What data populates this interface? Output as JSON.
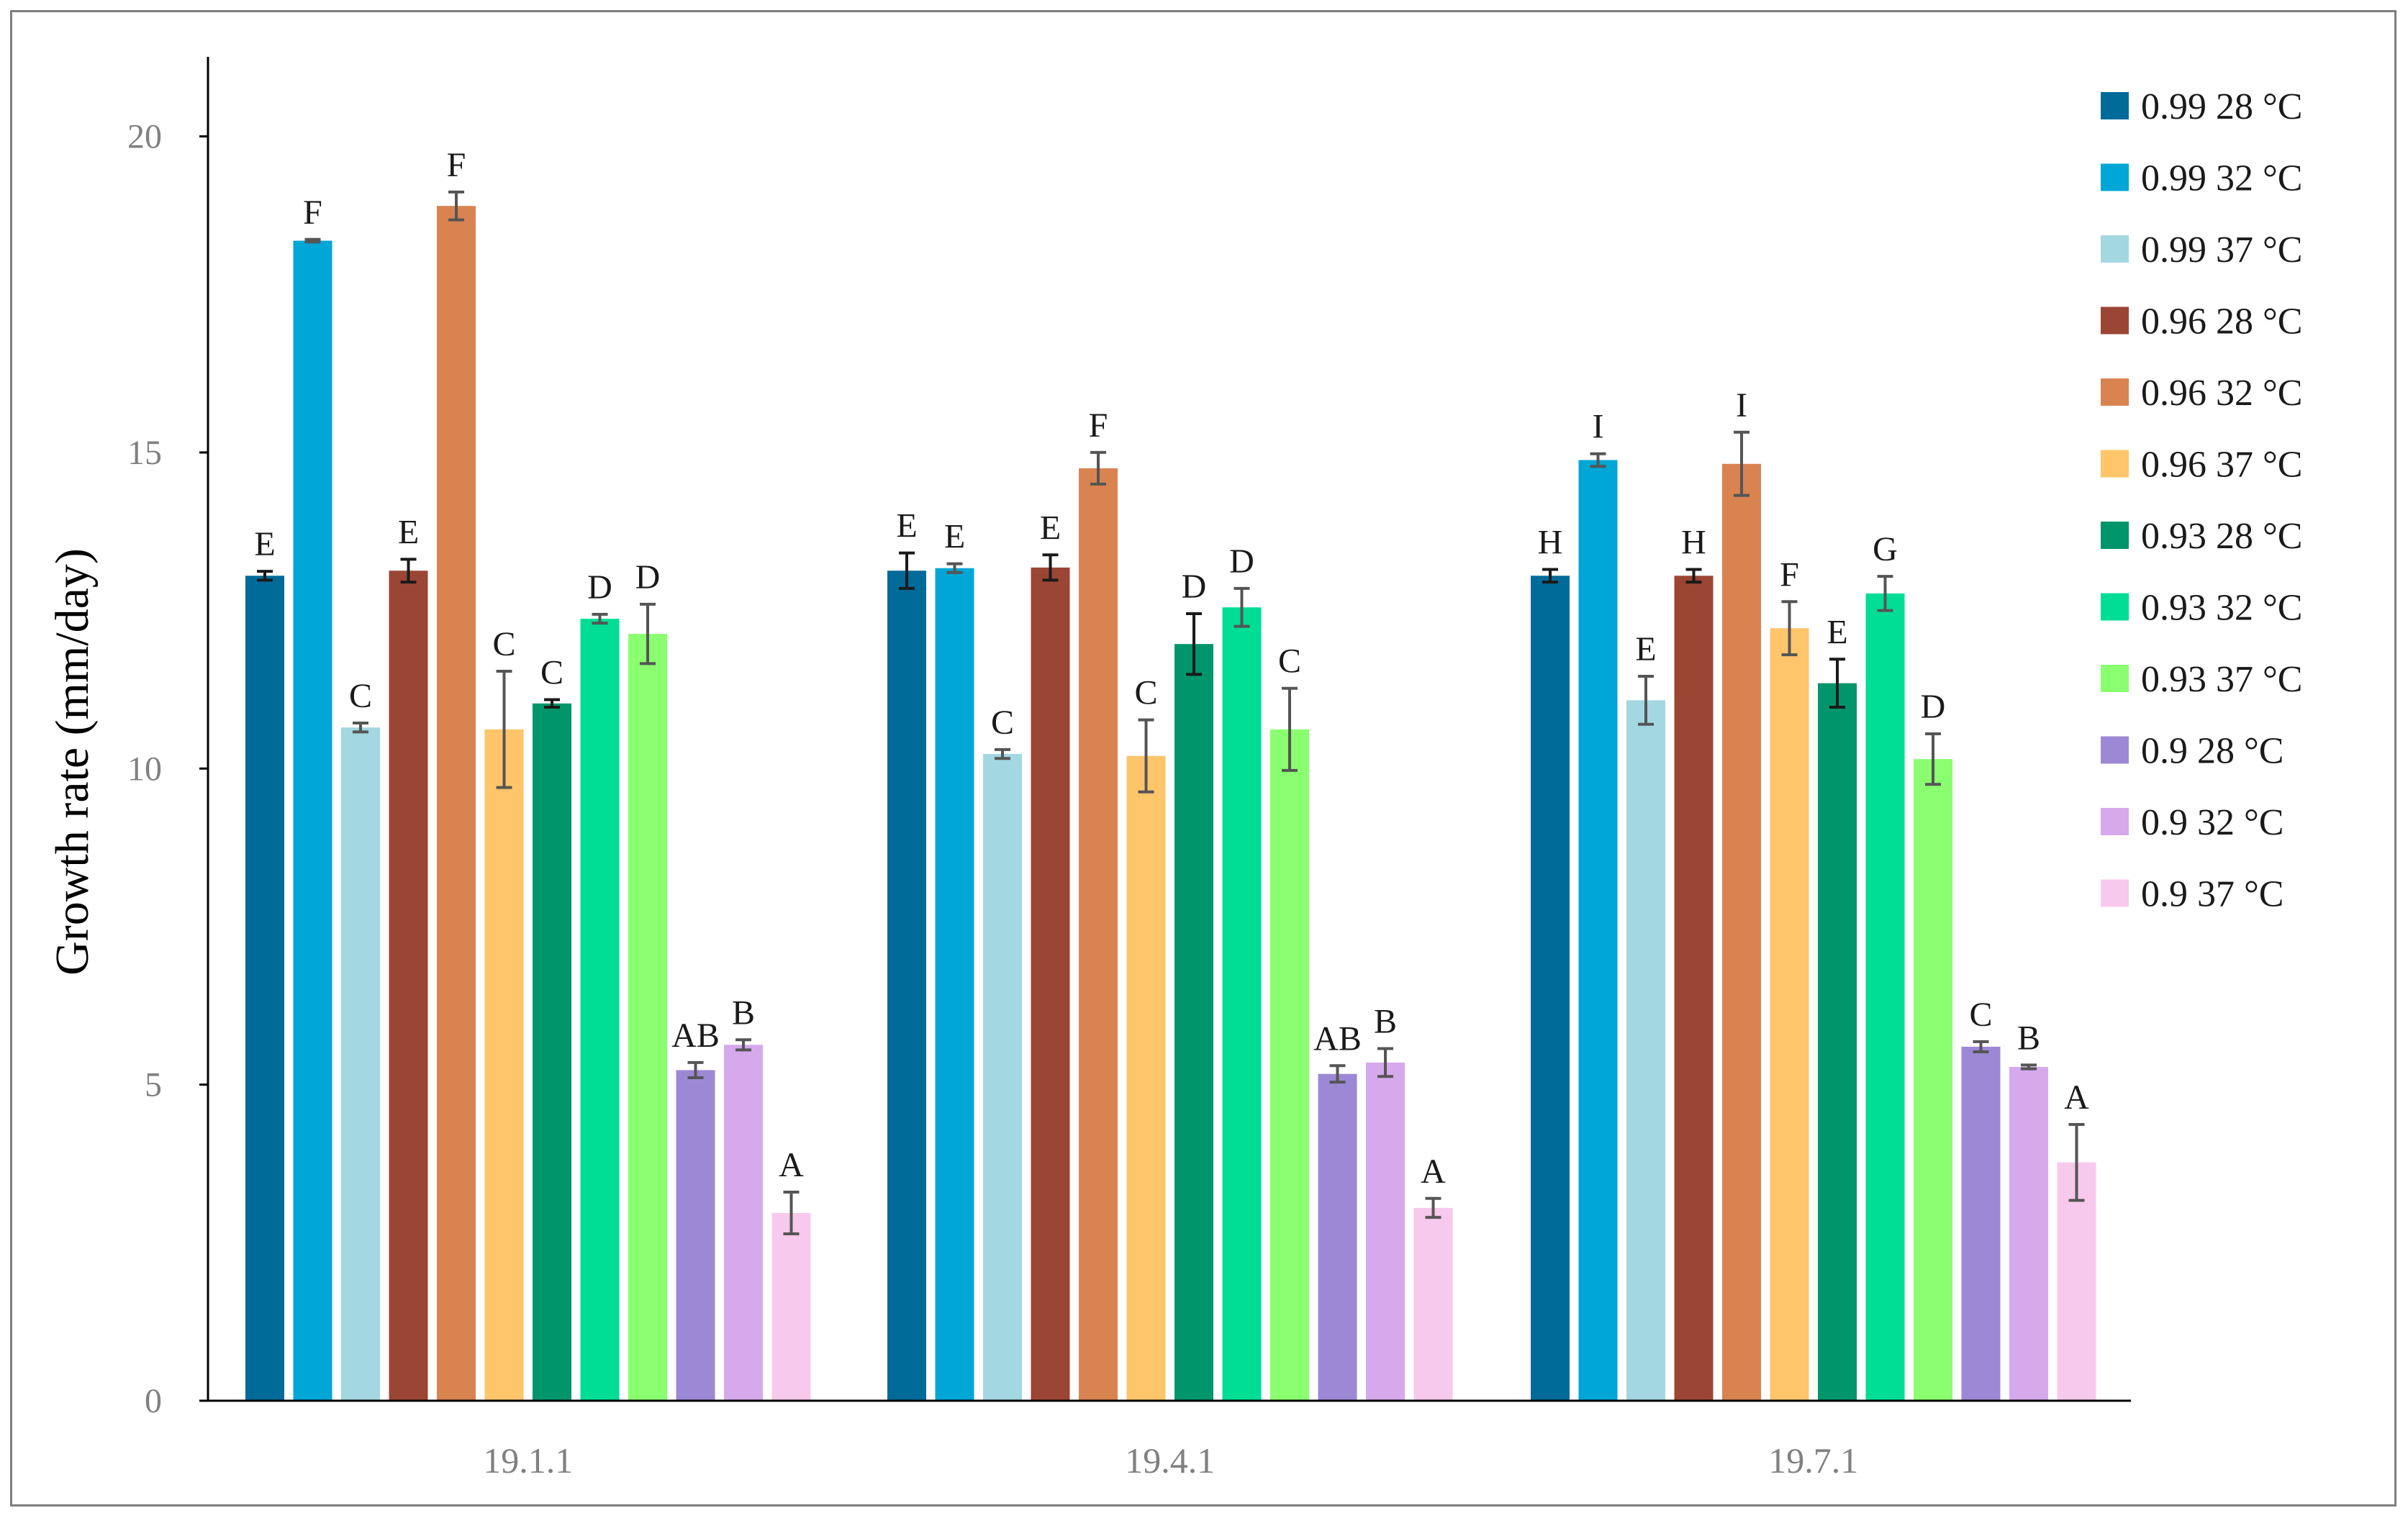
{
  "chart_data": {
    "type": "bar",
    "title": "",
    "xlabel": "",
    "ylabel": "Growth rate (mm/day)",
    "ylim": [
      0,
      21
    ],
    "yticks": [
      0,
      5,
      10,
      15,
      20
    ],
    "grid": false,
    "legend_position": "right",
    "categories": [
      "19.1.1",
      "19.4.1",
      "19.7.1"
    ],
    "series": [
      {
        "name": "0.99 28 °C",
        "color": "#006a99",
        "values": [
          13.05,
          13.13,
          13.05
        ],
        "errors": [
          0.07,
          0.28,
          0.1
        ],
        "letters": [
          "E",
          "E",
          "H"
        ]
      },
      {
        "name": "0.99 32 °C",
        "color": "#00a6d6",
        "values": [
          18.35,
          13.17,
          14.88
        ],
        "errors": [
          0.02,
          0.07,
          0.1
        ],
        "letters": [
          "F",
          "E",
          "I"
        ]
      },
      {
        "name": "0.99 37 °C",
        "color": "#a3d7e1",
        "values": [
          10.65,
          10.23,
          11.08
        ],
        "errors": [
          0.07,
          0.07,
          0.38
        ],
        "letters": [
          "C",
          "C",
          "E"
        ]
      },
      {
        "name": "0.96 28 °C",
        "color": "#9b4634",
        "values": [
          13.13,
          13.18,
          13.05
        ],
        "errors": [
          0.18,
          0.2,
          0.1
        ],
        "letters": [
          "E",
          "E",
          "H"
        ]
      },
      {
        "name": "0.96 32 °C",
        "color": "#d98351",
        "values": [
          18.9,
          14.75,
          14.82
        ],
        "errors": [
          0.22,
          0.25,
          0.5
        ],
        "letters": [
          "F",
          "F",
          "I"
        ]
      },
      {
        "name": "0.96 37 °C",
        "color": "#ffc56a",
        "values": [
          10.62,
          10.2,
          12.22
        ],
        "errors": [
          0.92,
          0.57,
          0.42
        ],
        "letters": [
          "C",
          "C",
          "F"
        ]
      },
      {
        "name": "0.93 28 °C",
        "color": "#00956a",
        "values": [
          11.03,
          11.97,
          11.35
        ],
        "errors": [
          0.06,
          0.48,
          0.38
        ],
        "letters": [
          "C",
          "D",
          "E"
        ]
      },
      {
        "name": "0.93 32 °C",
        "color": "#00de96",
        "values": [
          12.37,
          12.55,
          12.77
        ],
        "errors": [
          0.07,
          0.3,
          0.27
        ],
        "letters": [
          "D",
          "D",
          "G"
        ]
      },
      {
        "name": "0.93 37 °C",
        "color": "#8aff70",
        "values": [
          12.13,
          10.62,
          10.15
        ],
        "errors": [
          0.47,
          0.65,
          0.4
        ],
        "letters": [
          "D",
          "C",
          "D"
        ]
      },
      {
        "name": "0.9 28 °C",
        "color": "#9d88d6",
        "values": [
          5.23,
          5.17,
          5.6
        ],
        "errors": [
          0.12,
          0.13,
          0.08
        ],
        "letters": [
          "AB",
          "AB",
          "C"
        ]
      },
      {
        "name": "0.9 32 °C",
        "color": "#d6a9ed",
        "values": [
          5.63,
          5.35,
          5.28
        ],
        "errors": [
          0.08,
          0.22,
          0.03
        ],
        "letters": [
          "B",
          "B",
          "B"
        ]
      },
      {
        "name": "0.9 37 °C",
        "color": "#f7c9ec",
        "values": [
          2.97,
          3.05,
          3.77
        ],
        "errors": [
          0.33,
          0.15,
          0.6
        ],
        "letters": [
          "A",
          "A",
          "A"
        ]
      }
    ]
  }
}
